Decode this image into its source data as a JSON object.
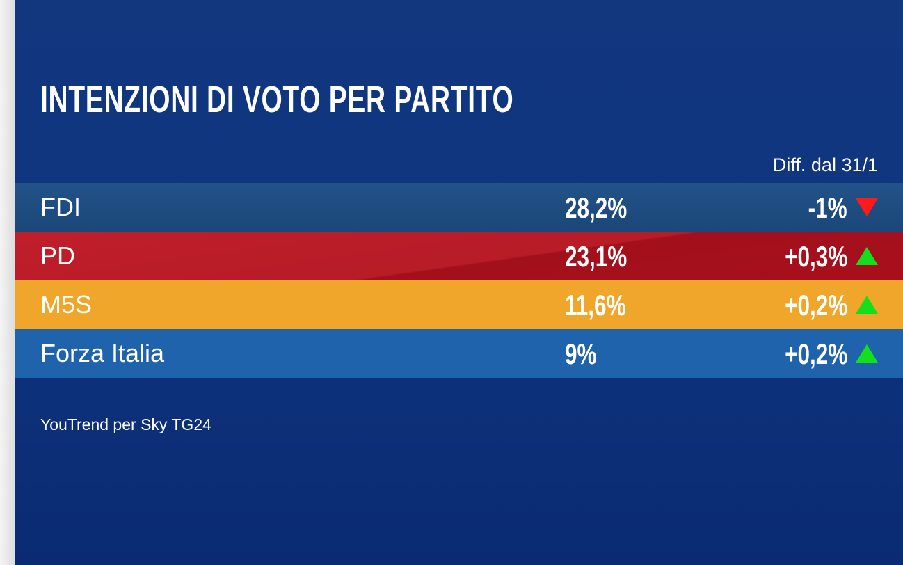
{
  "title": "INTENZIONI DI VOTO PER PARTITO",
  "diff_header": "Diff. dal 31/1",
  "rows": [
    {
      "party": "FDI",
      "value": "28,2%",
      "diff": "-1%",
      "trend": "down",
      "color": "#1f4e82"
    },
    {
      "party": "PD",
      "value": "23,1%",
      "diff": "+0,3%",
      "trend": "up",
      "color": "#b51b27"
    },
    {
      "party": "M5S",
      "value": "11,6%",
      "diff": "+0,2%",
      "trend": "up",
      "color": "#f0a62a"
    },
    {
      "party": "Forza Italia",
      "value": "9%",
      "diff": "+0,2%",
      "trend": "up",
      "color": "#2063ad"
    }
  ],
  "source": "YouTrend per Sky TG24"
}
